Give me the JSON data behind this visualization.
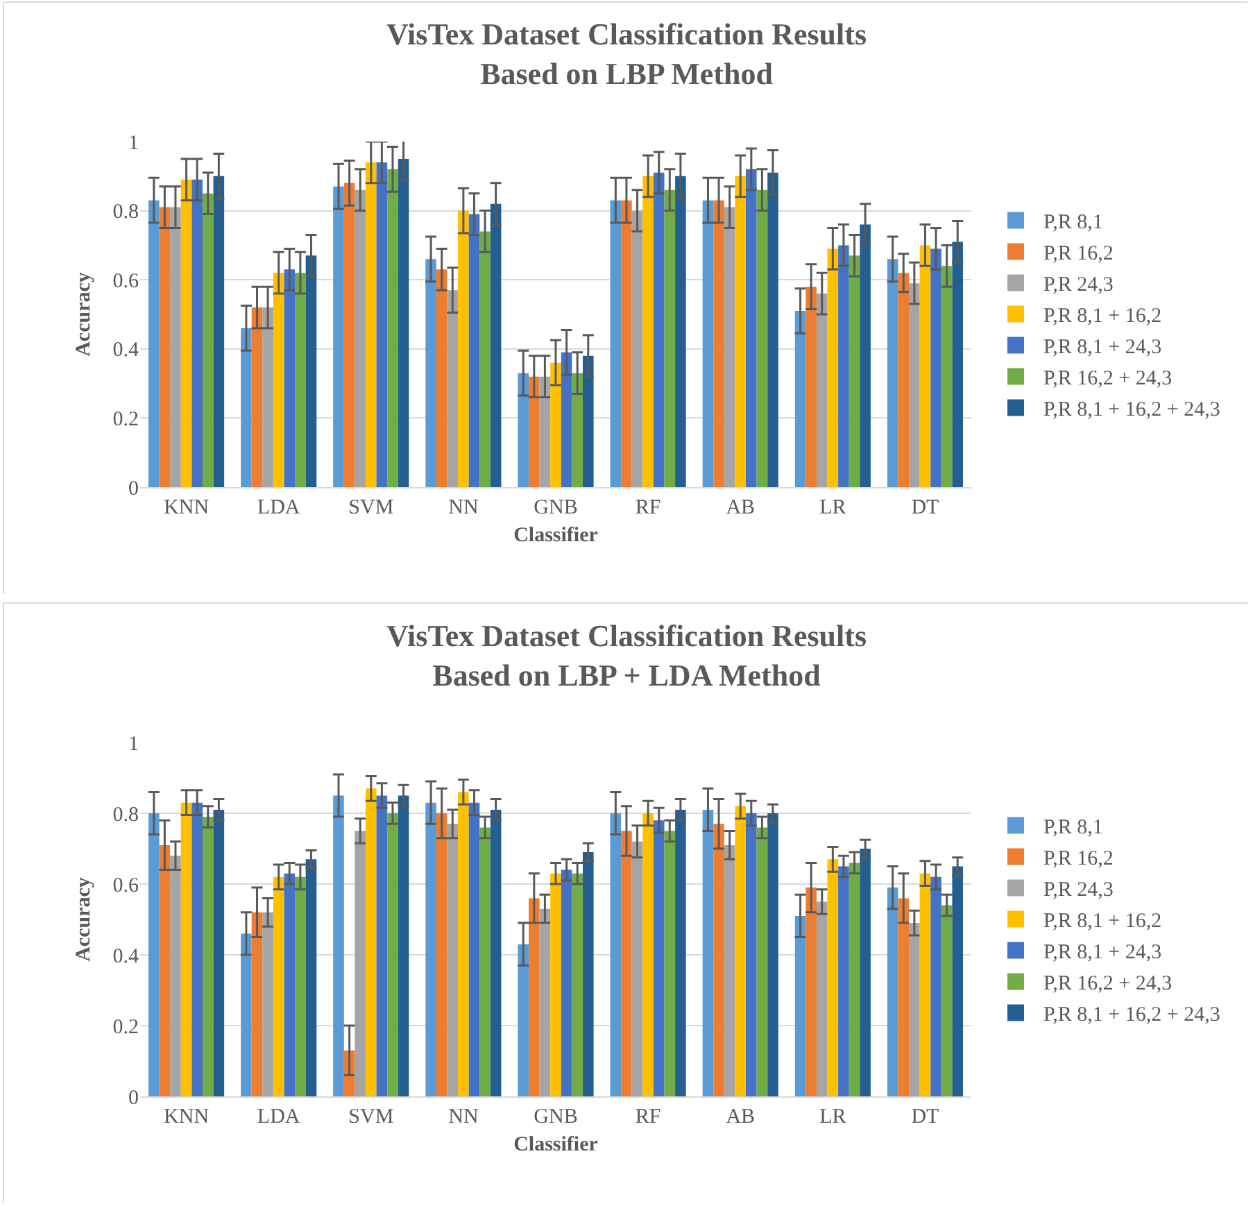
{
  "chart_data": [
    {
      "type": "bar",
      "title": "VisTex Dataset Classification Results\nBased on LBP Method",
      "xlabel": "Classifier",
      "ylabel": "Accuracy",
      "categories": [
        "KNN",
        "LDA",
        "SVM",
        "NN",
        "GNB",
        "RF",
        "AB",
        "LR",
        "DT"
      ],
      "ylim": [
        0,
        1
      ],
      "yticks": [
        0,
        0.2,
        0.4,
        0.6,
        0.8,
        1
      ],
      "grid": "y",
      "legend": "right",
      "series": [
        {
          "name": "P,R 8,1",
          "color": "#5b9bd5",
          "values": [
            0.83,
            0.46,
            0.87,
            0.66,
            0.33,
            0.83,
            0.83,
            0.51,
            0.66
          ],
          "errors": [
            0.065,
            0.065,
            0.065,
            0.065,
            0.065,
            0.065,
            0.065,
            0.065,
            0.065
          ]
        },
        {
          "name": "P,R 16,2",
          "color": "#ed7d31",
          "values": [
            0.81,
            0.52,
            0.88,
            0.63,
            0.32,
            0.83,
            0.83,
            0.58,
            0.62
          ],
          "errors": [
            0.06,
            0.06,
            0.065,
            0.06,
            0.06,
            0.065,
            0.065,
            0.065,
            0.055
          ]
        },
        {
          "name": "P,R 24,3",
          "color": "#a5a5a5",
          "values": [
            0.81,
            0.52,
            0.86,
            0.57,
            0.32,
            0.8,
            0.81,
            0.56,
            0.59
          ],
          "errors": [
            0.06,
            0.06,
            0.06,
            0.065,
            0.06,
            0.06,
            0.06,
            0.06,
            0.06
          ]
        },
        {
          "name": "P,R 8,1 + 16,2",
          "color": "#ffc000",
          "values": [
            0.89,
            0.62,
            0.94,
            0.8,
            0.36,
            0.9,
            0.9,
            0.69,
            0.7
          ],
          "errors": [
            0.06,
            0.06,
            0.06,
            0.065,
            0.065,
            0.06,
            0.06,
            0.06,
            0.06
          ]
        },
        {
          "name": "P,R 8,1 + 24,3",
          "color": "#4472c4",
          "values": [
            0.89,
            0.63,
            0.94,
            0.79,
            0.39,
            0.91,
            0.92,
            0.7,
            0.69
          ],
          "errors": [
            0.06,
            0.06,
            0.06,
            0.06,
            0.065,
            0.06,
            0.06,
            0.06,
            0.06
          ]
        },
        {
          "name": "P,R 16,2 + 24,3",
          "color": "#70ad47",
          "values": [
            0.85,
            0.62,
            0.92,
            0.74,
            0.33,
            0.86,
            0.86,
            0.67,
            0.64
          ],
          "errors": [
            0.06,
            0.06,
            0.065,
            0.06,
            0.06,
            0.06,
            0.06,
            0.06,
            0.06
          ]
        },
        {
          "name": "P,R 8,1 + 16,2 + 24,3",
          "color": "#255e91",
          "values": [
            0.9,
            0.67,
            0.95,
            0.82,
            0.38,
            0.9,
            0.91,
            0.76,
            0.71
          ],
          "errors": [
            0.065,
            0.06,
            0.06,
            0.06,
            0.06,
            0.065,
            0.065,
            0.06,
            0.06
          ]
        }
      ]
    },
    {
      "type": "bar",
      "title": "VisTex Dataset Classification Results\nBased on LBP + LDA Method",
      "xlabel": "Classifier",
      "ylabel": "Accuracy",
      "categories": [
        "KNN",
        "LDA",
        "SVM",
        "NN",
        "GNB",
        "RF",
        "AB",
        "LR",
        "DT"
      ],
      "ylim": [
        0,
        1
      ],
      "yticks": [
        0,
        0.2,
        0.4,
        0.6,
        0.8,
        1
      ],
      "grid": "y",
      "legend": "right",
      "series": [
        {
          "name": "P,R 8,1",
          "color": "#5b9bd5",
          "values": [
            0.8,
            0.46,
            0.85,
            0.83,
            0.43,
            0.8,
            0.81,
            0.51,
            0.59
          ],
          "errors": [
            0.06,
            0.06,
            0.06,
            0.06,
            0.06,
            0.06,
            0.06,
            0.06,
            0.06
          ]
        },
        {
          "name": "P,R 16,2",
          "color": "#ed7d31",
          "values": [
            0.71,
            0.52,
            0.13,
            0.8,
            0.56,
            0.75,
            0.77,
            0.59,
            0.56
          ],
          "errors": [
            0.07,
            0.07,
            0.07,
            0.07,
            0.07,
            0.07,
            0.07,
            0.07,
            0.07
          ]
        },
        {
          "name": "P,R 24,3",
          "color": "#a5a5a5",
          "values": [
            0.68,
            0.52,
            0.75,
            0.77,
            0.53,
            0.72,
            0.71,
            0.55,
            0.49
          ],
          "errors": [
            0.04,
            0.04,
            0.035,
            0.04,
            0.04,
            0.045,
            0.04,
            0.035,
            0.035
          ]
        },
        {
          "name": "P,R 8,1 + 16,2",
          "color": "#ffc000",
          "values": [
            0.83,
            0.62,
            0.87,
            0.86,
            0.63,
            0.8,
            0.82,
            0.67,
            0.63
          ],
          "errors": [
            0.035,
            0.035,
            0.035,
            0.035,
            0.03,
            0.035,
            0.035,
            0.035,
            0.035
          ]
        },
        {
          "name": "P,R 8,1 + 24,3",
          "color": "#4472c4",
          "values": [
            0.83,
            0.63,
            0.85,
            0.83,
            0.64,
            0.78,
            0.8,
            0.65,
            0.62
          ],
          "errors": [
            0.035,
            0.03,
            0.035,
            0.035,
            0.03,
            0.035,
            0.035,
            0.03,
            0.035
          ]
        },
        {
          "name": "P,R 16,2 + 24,3",
          "color": "#70ad47",
          "values": [
            0.79,
            0.62,
            0.8,
            0.76,
            0.63,
            0.75,
            0.76,
            0.66,
            0.54
          ],
          "errors": [
            0.03,
            0.035,
            0.03,
            0.03,
            0.03,
            0.03,
            0.03,
            0.03,
            0.03
          ]
        },
        {
          "name": "P,R 8,1 + 16,2 + 24,3",
          "color": "#255e91",
          "values": [
            0.81,
            0.67,
            0.85,
            0.81,
            0.69,
            0.81,
            0.8,
            0.7,
            0.65
          ],
          "errors": [
            0.03,
            0.025,
            0.03,
            0.03,
            0.025,
            0.03,
            0.025,
            0.025,
            0.025
          ]
        }
      ]
    }
  ]
}
